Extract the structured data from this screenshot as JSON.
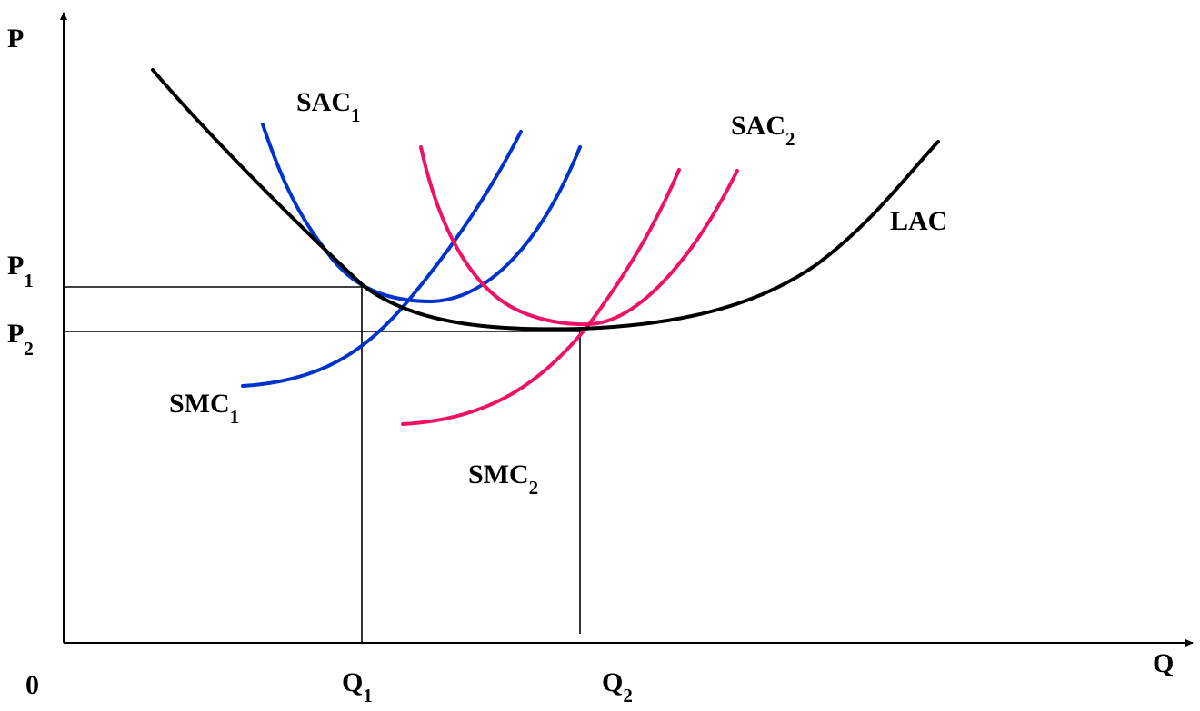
{
  "colors": {
    "lac": "#000000",
    "plant1": "#0033cc",
    "plant2": "#ee1166"
  },
  "axes": {
    "y_label": "P",
    "x_label": "Q",
    "origin_label": "0"
  },
  "levels": {
    "p1": {
      "main": "P",
      "sub": "1"
    },
    "p2": {
      "main": "P",
      "sub": "2"
    },
    "q1": {
      "main": "Q",
      "sub": "1"
    },
    "q2": {
      "main": "Q",
      "sub": "2"
    }
  },
  "curves": {
    "lac": {
      "main": "LAC",
      "sub": ""
    },
    "sac1": {
      "main": "SAC",
      "sub": "1"
    },
    "smc1": {
      "main": "SMC",
      "sub": "1"
    },
    "sac2": {
      "main": "SAC",
      "sub": "2"
    },
    "smc2": {
      "main": "SMC",
      "sub": "2"
    }
  }
}
